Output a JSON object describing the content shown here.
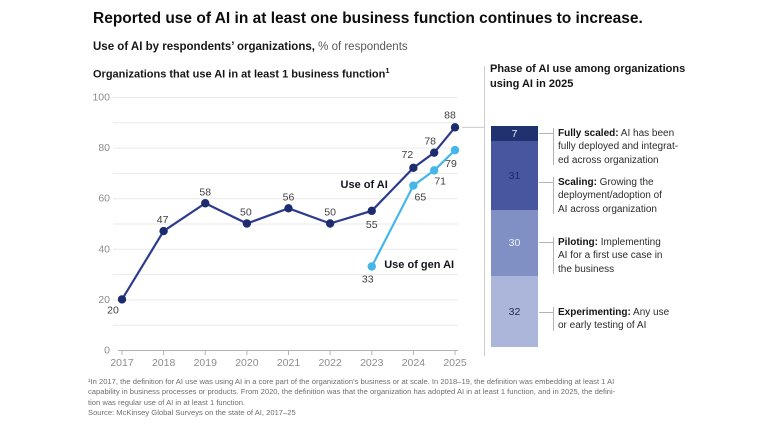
{
  "header": {
    "title": "Reported use of AI in at least one business function continues to increase.",
    "subtitle_bold": "Use of AI by respondents’ organizations,",
    "subtitle_regular": " % of respondents"
  },
  "right_panel": {
    "title_lines": [
      "Phase of AI use among organizations",
      "using AI in 2025"
    ]
  },
  "chart_data": [
    {
      "type": "line",
      "title": "Organizations that use AI in at least 1 business function",
      "title_superscript": "1",
      "xlabel": "",
      "ylabel": "% of respondents",
      "x_tick_labels": [
        "2017",
        "2018",
        "2019",
        "2020",
        "2021",
        "2022",
        "2023",
        "2024",
        "2025"
      ],
      "y_tick_labels": [
        0,
        20,
        40,
        60,
        80,
        100
      ],
      "ylim": [
        0,
        100
      ],
      "xlim": [
        2017,
        2025
      ],
      "grid": "horizontal",
      "grid_interval": 10,
      "colors": {
        "grid": "#e9e9e9",
        "axis": "#b3b3b3",
        "tick_text": "#8c8c8c",
        "data_label": "#3f3f3f",
        "leader_line": "#cccccc",
        "annotation_text": "#12151c"
      },
      "series": [
        {
          "name": "Use of AI",
          "color": "#2c3b8e",
          "dot_color": "#1d2c6e",
          "points": [
            {
              "x": 2017,
              "y": 20,
              "label": "20",
              "label_offset": [
                -9,
                14
              ]
            },
            {
              "x": 2018,
              "y": 47,
              "label": "47",
              "label_offset": [
                -1,
                -8
              ]
            },
            {
              "x": 2019,
              "y": 58,
              "label": "58",
              "label_offset": [
                0,
                -8
              ]
            },
            {
              "x": 2020,
              "y": 50,
              "label": "50",
              "label_offset": [
                -1,
                -8
              ]
            },
            {
              "x": 2021,
              "y": 56,
              "label": "56",
              "label_offset": [
                0,
                -8
              ]
            },
            {
              "x": 2022,
              "y": 50,
              "label": "50",
              "label_offset": [
                0,
                -8
              ]
            },
            {
              "x": 2023,
              "y": 55,
              "label": "55",
              "label_offset": [
                0,
                17
              ]
            },
            {
              "x": 2024,
              "y": 72,
              "label": "72",
              "label_offset": [
                -6,
                -10
              ]
            },
            {
              "x": 2024.5,
              "y": 78,
              "label": "78",
              "label_offset": [
                -4,
                -8
              ]
            },
            {
              "x": 2025,
              "y": 88,
              "label": "88",
              "label_offset": [
                -5,
                -9
              ]
            }
          ]
        },
        {
          "name": "Use of gen AI",
          "color": "#45b6ea",
          "dot_color": "#45b6ea",
          "points": [
            {
              "x": 2023,
              "y": 33,
              "label": "33",
              "label_offset": [
                -4,
                16
              ]
            },
            {
              "x": 2024,
              "y": 65,
              "label": "65",
              "label_offset": [
                7,
                15
              ]
            },
            {
              "x": 2024.5,
              "y": 71,
              "label": "71",
              "label_offset": [
                6,
                14
              ]
            },
            {
              "x": 2025,
              "y": 79,
              "label": "79",
              "label_offset": [
                -4,
                17
              ]
            }
          ]
        }
      ],
      "series_labels": [
        {
          "text": "Use of AI",
          "x": 2022.25,
          "y": 64,
          "anchor": "start"
        },
        {
          "text": "Use of gen AI",
          "x": 2023.3,
          "y": 32.4,
          "anchor": "start"
        }
      ]
    },
    {
      "type": "bar",
      "subtype": "single-stacked-column",
      "title": "Phase of AI use among organizations using AI in 2025",
      "total": 100,
      "connector_color": "#b3b3b3",
      "segments": [
        {
          "value": 7,
          "color": "#20316f",
          "value_color": "#eef1f8",
          "term": "Fully scaled:",
          "description": "AI has been fully deployed and integrated across organization",
          "lines": [
            "AI has been",
            "fully deployed and integrat-",
            "ed across organization"
          ]
        },
        {
          "value": 31,
          "color": "#47569f",
          "value_color": "#1b2a66",
          "term": "Scaling:",
          "description": "Growing the deployment/adoption of AI across organization",
          "lines": [
            "Growing the",
            "deployment/adoption of",
            "AI across organization"
          ]
        },
        {
          "value": 30,
          "color": "#8090c5",
          "value_color": "#eef1f8",
          "term": "Piloting:",
          "description": "Implementing AI for a first use case in the business",
          "lines": [
            "Implementing",
            "AI for a first use case in",
            "the business"
          ]
        },
        {
          "value": 32,
          "color": "#acb6da",
          "value_color": "#222b55",
          "term": "Experimenting:",
          "description": "Any use or early testing of AI",
          "lines": [
            "Any use",
            "or early testing of AI"
          ]
        }
      ]
    }
  ],
  "footnote": {
    "lines": [
      "¹In 2017, the definition for AI use was using AI in a core part of the organization’s business or at scale. In 2018–19, the definition was embedding at least 1 AI",
      "capability in business processes or products. From 2020, the definition was that the organization has adopted AI in at least 1 function, and in 2025, the defini-",
      "tion was regular use of AI in at least 1 function.",
      "Source: McKinsey Global Surveys on the state of AI, 2017–25"
    ]
  }
}
